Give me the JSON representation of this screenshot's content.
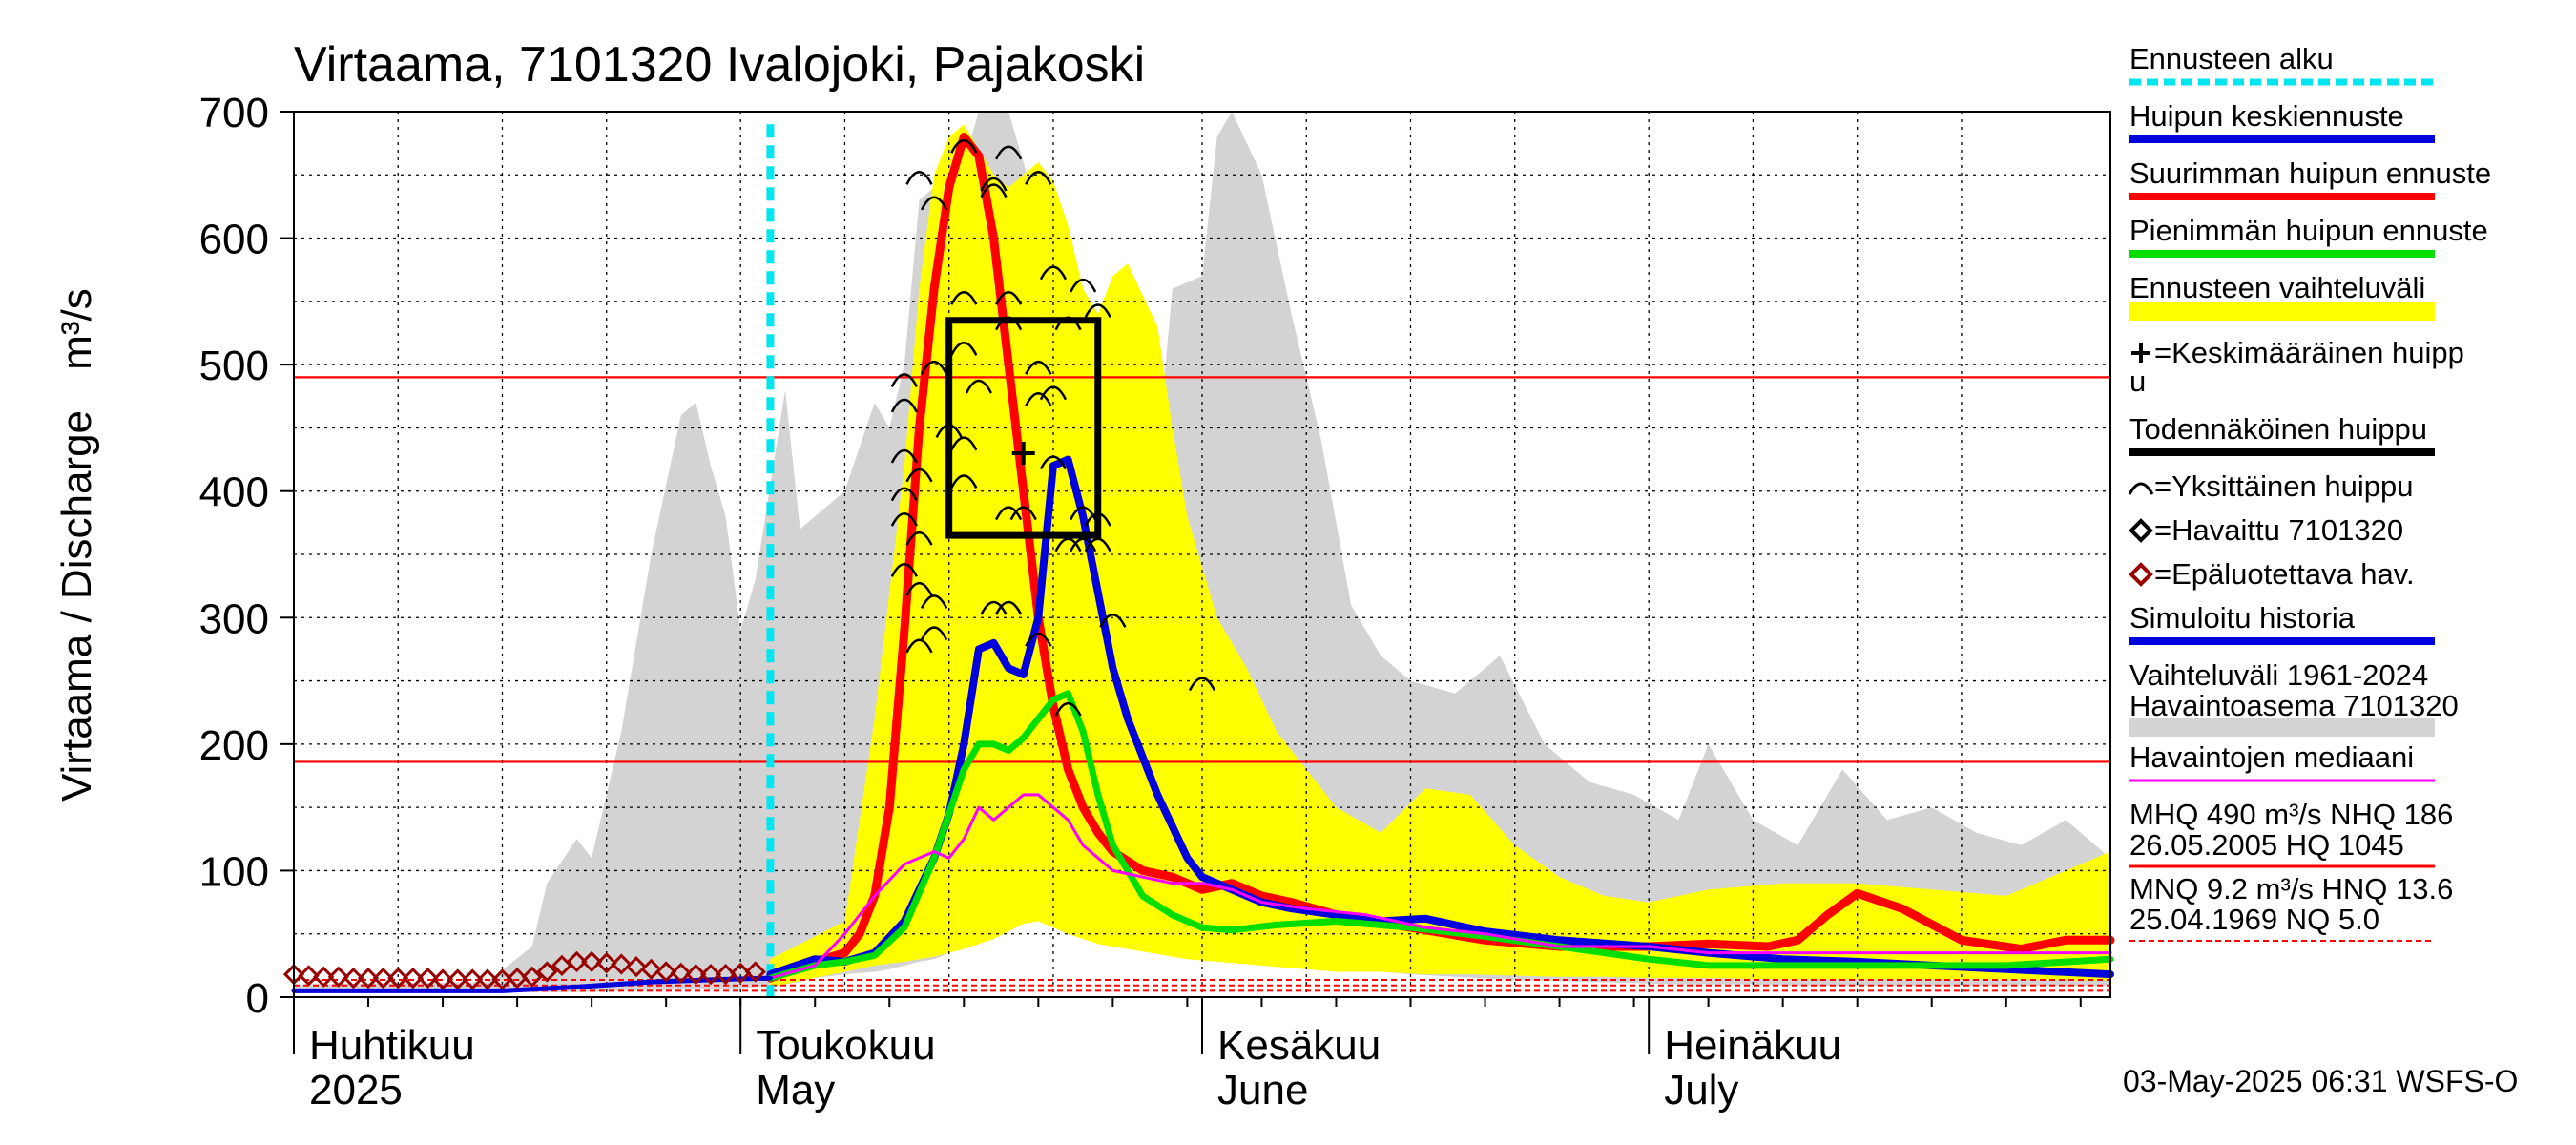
{
  "chart_data": {
    "type": "line",
    "title": "Virtaama, 7101320 Ivalojoki, Pajakoski",
    "ylabel": "Virtaama / Discharge",
    "yunit": "m³/s",
    "ylim": [
      0,
      700
    ],
    "xlim": [
      "2025-04-01",
      "2025-08-01"
    ],
    "yticks": [
      0,
      100,
      200,
      300,
      400,
      500,
      600,
      700
    ],
    "months": [
      {
        "fi": "Huhtikuu",
        "en": "2025",
        "date": "2025-04-01"
      },
      {
        "fi": "Toukokuu",
        "en": "May",
        "date": "2025-05-01"
      },
      {
        "fi": "Kesäkuu",
        "en": "June",
        "date": "2025-06-01"
      },
      {
        "fi": "Heinäkuu",
        "en": "July",
        "date": "2025-07-01"
      }
    ],
    "grid": true,
    "legend_position": "right",
    "colors": {
      "forecast_start": "#00e5ee",
      "mean_forecast": "#0000dd",
      "max_forecast": "#ff0000",
      "min_forecast": "#00dd00",
      "forecast_range": "#ffff00",
      "historical_range": "#d3d3d3",
      "median": "#ff00ff",
      "observed": "#000000",
      "unreliable": "#990000",
      "reference_line": "#ff0000"
    },
    "forecast_start": "2025-05-03",
    "reference_lines": [
      {
        "name": "MHQ",
        "value": 490
      },
      {
        "name": "NHQ",
        "value": 186
      },
      {
        "name": "MNQ",
        "value": 9.2
      },
      {
        "name": "HNQ",
        "value": 13.6
      },
      {
        "name": "NQ",
        "value": 5.0
      }
    ],
    "probable_peak_box": {
      "x0": "2025-05-15",
      "x1": "2025-05-25",
      "y0": 365,
      "y1": 535
    },
    "mean_peak": {
      "x": "2025-05-20",
      "y": 430
    },
    "historical_range": {
      "x": [
        "2025-04-01",
        "2025-04-14",
        "2025-04-17",
        "2025-04-18",
        "2025-04-20",
        "2025-04-21",
        "2025-04-23",
        "2025-04-25",
        "2025-04-27",
        "2025-04-28",
        "2025-04-29",
        "2025-04-30",
        "2025-05-01",
        "2025-05-02",
        "2025-05-04",
        "2025-05-05",
        "2025-05-06",
        "2025-05-08",
        "2025-05-10",
        "2025-05-11",
        "2025-05-12",
        "2025-05-13",
        "2025-05-14",
        "2025-05-15",
        "2025-05-16",
        "2025-05-17",
        "2025-05-18",
        "2025-05-19",
        "2025-05-20",
        "2025-05-21",
        "2025-05-22",
        "2025-05-23",
        "2025-05-25",
        "2025-05-26",
        "2025-05-28",
        "2025-05-29",
        "2025-05-30",
        "2025-06-01",
        "2025-06-02",
        "2025-06-03",
        "2025-06-05",
        "2025-06-07",
        "2025-06-09",
        "2025-06-11",
        "2025-06-13",
        "2025-06-15",
        "2025-06-18",
        "2025-06-21",
        "2025-06-24",
        "2025-06-27",
        "2025-06-30",
        "2025-07-03",
        "2025-07-05",
        "2025-07-08",
        "2025-07-11",
        "2025-07-14",
        "2025-07-17",
        "2025-07-20",
        "2025-07-23",
        "2025-07-26",
        "2025-07-29",
        "2025-08-01"
      ],
      "upper": [
        10,
        12,
        40,
        90,
        125,
        110,
        210,
        350,
        460,
        470,
        420,
        380,
        290,
        330,
        480,
        370,
        380,
        400,
        470,
        450,
        500,
        630,
        640,
        600,
        660,
        700,
        700,
        700,
        660,
        620,
        590,
        560,
        540,
        510,
        470,
        430,
        560,
        570,
        680,
        700,
        650,
        540,
        440,
        310,
        270,
        250,
        240,
        270,
        200,
        170,
        160,
        140,
        200,
        140,
        120,
        180,
        140,
        150,
        130,
        120,
        140,
        110
      ],
      "lower": [
        4,
        4,
        4,
        4,
        4,
        4,
        5,
        5,
        6,
        6,
        6,
        6,
        7,
        8,
        10,
        12,
        15,
        18,
        20,
        22,
        25,
        28,
        30,
        35,
        40,
        45,
        50,
        60,
        80,
        110,
        130,
        120,
        90,
        70,
        60,
        50,
        40,
        35,
        30,
        28,
        26,
        25,
        24,
        22,
        20,
        18,
        16,
        14,
        13,
        12,
        11,
        10,
        10,
        10,
        9,
        9,
        9,
        9,
        9,
        9,
        9,
        9
      ]
    },
    "forecast_range": {
      "x": [
        "2025-05-03",
        "2025-05-08",
        "2025-05-10",
        "2025-05-12",
        "2025-05-13",
        "2025-05-14",
        "2025-05-15",
        "2025-05-16",
        "2025-05-17",
        "2025-05-18",
        "2025-05-19",
        "2025-05-20",
        "2025-05-21",
        "2025-05-22",
        "2025-05-23",
        "2025-05-24",
        "2025-05-25",
        "2025-05-26",
        "2025-05-27",
        "2025-05-28",
        "2025-05-29",
        "2025-05-30",
        "2025-05-31",
        "2025-06-02",
        "2025-06-04",
        "2025-06-06",
        "2025-06-08",
        "2025-06-10",
        "2025-06-13",
        "2025-06-16",
        "2025-06-19",
        "2025-06-22",
        "2025-06-25",
        "2025-06-28",
        "2025-07-01",
        "2025-07-05",
        "2025-07-10",
        "2025-07-15",
        "2025-07-20",
        "2025-07-25",
        "2025-07-31",
        "2025-08-01"
      ],
      "upper": [
        30,
        60,
        220,
        420,
        560,
        650,
        680,
        690,
        670,
        650,
        640,
        650,
        660,
        645,
        610,
        560,
        540,
        570,
        580,
        555,
        530,
        450,
        380,
        300,
        260,
        210,
        180,
        150,
        130,
        165,
        160,
        120,
        95,
        80,
        75,
        85,
        90,
        90,
        85,
        80,
        110,
        115
      ],
      "lower": [
        8,
        20,
        25,
        28,
        30,
        32,
        35,
        38,
        42,
        46,
        52,
        58,
        60,
        55,
        50,
        46,
        42,
        40,
        38,
        36,
        34,
        32,
        30,
        28,
        26,
        24,
        22,
        20,
        20,
        18,
        18,
        17,
        16,
        16,
        15,
        15,
        14,
        14,
        14,
        14,
        13,
        13
      ]
    },
    "series": [
      {
        "key": "max_forecast",
        "x": [
          "2025-05-03",
          "2025-05-06",
          "2025-05-08",
          "2025-05-09",
          "2025-05-10",
          "2025-05-11",
          "2025-05-12",
          "2025-05-13",
          "2025-05-14",
          "2025-05-15",
          "2025-05-16",
          "2025-05-17",
          "2025-05-18",
          "2025-05-19",
          "2025-05-20",
          "2025-05-21",
          "2025-05-22",
          "2025-05-23",
          "2025-05-24",
          "2025-05-25",
          "2025-05-26",
          "2025-05-28",
          "2025-05-30",
          "2025-06-01",
          "2025-06-03",
          "2025-06-05",
          "2025-06-07",
          "2025-06-10",
          "2025-06-15",
          "2025-06-20",
          "2025-06-25",
          "2025-07-01",
          "2025-07-05",
          "2025-07-09",
          "2025-07-11",
          "2025-07-13",
          "2025-07-15",
          "2025-07-18",
          "2025-07-22",
          "2025-07-26",
          "2025-07-29",
          "2025-08-01"
        ],
        "y": [
          15,
          28,
          35,
          50,
          80,
          150,
          290,
          450,
          560,
          640,
          680,
          665,
          600,
          500,
          400,
          300,
          230,
          180,
          150,
          130,
          115,
          100,
          95,
          85,
          90,
          80,
          75,
          65,
          55,
          45,
          40,
          40,
          42,
          40,
          45,
          65,
          82,
          70,
          45,
          38,
          45,
          45
        ]
      },
      {
        "key": "mean_forecast",
        "x": [
          "2025-05-03",
          "2025-05-06",
          "2025-05-08",
          "2025-05-10",
          "2025-05-12",
          "2025-05-14",
          "2025-05-15",
          "2025-05-16",
          "2025-05-17",
          "2025-05-18",
          "2025-05-19",
          "2025-05-20",
          "2025-05-21",
          "2025-05-22",
          "2025-05-23",
          "2025-05-24",
          "2025-05-25",
          "2025-05-26",
          "2025-05-27",
          "2025-05-28",
          "2025-05-29",
          "2025-05-30",
          "2025-05-31",
          "2025-06-01",
          "2025-06-03",
          "2025-06-05",
          "2025-06-07",
          "2025-06-10",
          "2025-06-13",
          "2025-06-16",
          "2025-06-20",
          "2025-06-25",
          "2025-07-01",
          "2025-07-05",
          "2025-07-10",
          "2025-07-15",
          "2025-07-20",
          "2025-07-25",
          "2025-08-01"
        ],
        "y": [
          18,
          30,
          28,
          35,
          60,
          110,
          145,
          200,
          275,
          280,
          260,
          255,
          300,
          420,
          425,
          380,
          320,
          260,
          220,
          190,
          160,
          135,
          110,
          95,
          85,
          75,
          70,
          65,
          60,
          62,
          52,
          45,
          40,
          35,
          30,
          28,
          25,
          22,
          18
        ]
      },
      {
        "key": "min_forecast",
        "x": [
          "2025-05-03",
          "2025-05-06",
          "2025-05-08",
          "2025-05-10",
          "2025-05-12",
          "2025-05-14",
          "2025-05-15",
          "2025-05-16",
          "2025-05-17",
          "2025-05-18",
          "2025-05-19",
          "2025-05-20",
          "2025-05-21",
          "2025-05-22",
          "2025-05-23",
          "2025-05-24",
          "2025-05-25",
          "2025-05-26",
          "2025-05-28",
          "2025-05-30",
          "2025-06-01",
          "2025-06-03",
          "2025-06-06",
          "2025-06-10",
          "2025-06-15",
          "2025-06-20",
          "2025-06-25",
          "2025-07-01",
          "2025-07-05",
          "2025-07-10",
          "2025-07-15",
          "2025-07-20",
          "2025-07-25",
          "2025-08-01"
        ],
        "y": [
          15,
          25,
          28,
          33,
          55,
          110,
          145,
          180,
          200,
          200,
          195,
          205,
          220,
          235,
          240,
          210,
          160,
          120,
          80,
          65,
          55,
          53,
          57,
          60,
          55,
          48,
          40,
          30,
          25,
          25,
          25,
          25,
          25,
          30
        ]
      },
      {
        "key": "median",
        "x": [
          "2025-05-03",
          "2025-05-06",
          "2025-05-08",
          "2025-05-10",
          "2025-05-12",
          "2025-05-14",
          "2025-05-15",
          "2025-05-16",
          "2025-05-17",
          "2025-05-18",
          "2025-05-19",
          "2025-05-20",
          "2025-05-21",
          "2025-05-22",
          "2025-05-23",
          "2025-05-24",
          "2025-05-25",
          "2025-05-26",
          "2025-05-28",
          "2025-05-30",
          "2025-06-01",
          "2025-06-03",
          "2025-06-05",
          "2025-06-08",
          "2025-06-12",
          "2025-06-16",
          "2025-06-20",
          "2025-06-25",
          "2025-07-01",
          "2025-07-05",
          "2025-07-10",
          "2025-07-15",
          "2025-07-20",
          "2025-07-25",
          "2025-08-01"
        ],
        "y": [
          15,
          25,
          50,
          80,
          105,
          115,
          110,
          125,
          150,
          140,
          150,
          160,
          160,
          150,
          140,
          120,
          110,
          100,
          95,
          90,
          90,
          85,
          75,
          70,
          65,
          55,
          50,
          40,
          40,
          35,
          35,
          35,
          35,
          35,
          35
        ]
      },
      {
        "key": "simulated_history",
        "x": [
          "2025-04-01",
          "2025-04-15",
          "2025-04-20",
          "2025-04-25",
          "2025-04-30",
          "2025-05-03"
        ],
        "y": [
          5,
          5,
          8,
          12,
          14,
          15
        ]
      }
    ],
    "observed_unreliable": {
      "x": [
        "2025-04-01",
        "2025-04-02",
        "2025-04-03",
        "2025-04-04",
        "2025-04-05",
        "2025-04-06",
        "2025-04-07",
        "2025-04-08",
        "2025-04-09",
        "2025-04-10",
        "2025-04-11",
        "2025-04-12",
        "2025-04-13",
        "2025-04-14",
        "2025-04-15",
        "2025-04-16",
        "2025-04-17",
        "2025-04-18",
        "2025-04-19",
        "2025-04-20",
        "2025-04-21",
        "2025-04-22",
        "2025-04-23",
        "2025-04-24",
        "2025-04-25",
        "2025-04-26",
        "2025-04-27",
        "2025-04-28",
        "2025-04-29",
        "2025-04-30",
        "2025-05-01",
        "2025-05-02"
      ],
      "y": [
        18,
        17,
        16,
        16,
        15,
        15,
        15,
        15,
        15,
        15,
        14,
        14,
        14,
        14,
        14,
        15,
        16,
        20,
        25,
        28,
        28,
        27,
        26,
        24,
        22,
        20,
        19,
        18,
        18,
        18,
        19,
        20
      ]
    },
    "individual_peaks": [
      {
        "x": "2025-05-13",
        "y": 650
      },
      {
        "x": "2025-05-14",
        "y": 630
      },
      {
        "x": "2025-05-16",
        "y": 675
      },
      {
        "x": "2025-05-18",
        "y": 645
      },
      {
        "x": "2025-05-18",
        "y": 640
      },
      {
        "x": "2025-05-19",
        "y": 670
      },
      {
        "x": "2025-05-21",
        "y": 650
      },
      {
        "x": "2025-05-22",
        "y": 575
      },
      {
        "x": "2025-05-24",
        "y": 565
      },
      {
        "x": "2025-05-25",
        "y": 545
      },
      {
        "x": "2025-05-23",
        "y": 535
      },
      {
        "x": "2025-05-19",
        "y": 555
      },
      {
        "x": "2025-05-19",
        "y": 535
      },
      {
        "x": "2025-05-16",
        "y": 555
      },
      {
        "x": "2025-05-16",
        "y": 515
      },
      {
        "x": "2025-05-12",
        "y": 490
      },
      {
        "x": "2025-05-12",
        "y": 470
      },
      {
        "x": "2025-05-12",
        "y": 430
      },
      {
        "x": "2025-05-14",
        "y": 500
      },
      {
        "x": "2025-05-17",
        "y": 485
      },
      {
        "x": "2025-05-21",
        "y": 500
      },
      {
        "x": "2025-05-21",
        "y": 475
      },
      {
        "x": "2025-05-22",
        "y": 480
      },
      {
        "x": "2025-05-15",
        "y": 450
      },
      {
        "x": "2025-05-16",
        "y": 440
      },
      {
        "x": "2025-05-12",
        "y": 400
      },
      {
        "x": "2025-05-13",
        "y": 415
      },
      {
        "x": "2025-05-16",
        "y": 410
      },
      {
        "x": "2025-05-19",
        "y": 385
      },
      {
        "x": "2025-05-20",
        "y": 385
      },
      {
        "x": "2025-05-24",
        "y": 385
      },
      {
        "x": "2025-05-25",
        "y": 380
      },
      {
        "x": "2025-05-22",
        "y": 425
      },
      {
        "x": "2025-05-12",
        "y": 380
      },
      {
        "x": "2025-05-13",
        "y": 365
      },
      {
        "x": "2025-05-12",
        "y": 340
      },
      {
        "x": "2025-05-13",
        "y": 325
      },
      {
        "x": "2025-05-14",
        "y": 315
      },
      {
        "x": "2025-05-18",
        "y": 310
      },
      {
        "x": "2025-05-19",
        "y": 310
      },
      {
        "x": "2025-05-23",
        "y": 360
      },
      {
        "x": "2025-05-24",
        "y": 360
      },
      {
        "x": "2025-05-25",
        "y": 360
      },
      {
        "x": "2025-05-26",
        "y": 300
      },
      {
        "x": "2025-05-21",
        "y": 285
      },
      {
        "x": "2025-05-14",
        "y": 290
      },
      {
        "x": "2025-05-13",
        "y": 280
      },
      {
        "x": "2025-05-23",
        "y": 230
      },
      {
        "x": "2025-06-01",
        "y": 250
      }
    ]
  },
  "legend": [
    {
      "key": "forecast_start",
      "label": "Ennusteen alku",
      "swatch": "dash"
    },
    {
      "key": "mean_forecast",
      "label": "Huipun keskiennuste",
      "swatch": "bar"
    },
    {
      "key": "max_forecast",
      "label": "Suurimman huipun ennuste",
      "swatch": "bar"
    },
    {
      "key": "min_forecast",
      "label": "Pienimmän huipun ennuste",
      "swatch": "bar"
    },
    {
      "key": "forecast_range",
      "label": "Ennusteen vaihteluväli",
      "swatch": "wide"
    },
    {
      "key": "observed",
      "label": "=Keskimääräinen huipp",
      "label2": "u",
      "swatch": "plus"
    },
    {
      "key": "observed",
      "label": "Todennäköinen huippu",
      "swatch": "bar"
    },
    {
      "key": "observed",
      "label": "=Yksittäinen huippu",
      "swatch": "arc"
    },
    {
      "key": "observed",
      "label": "=Havaittu 7101320",
      "swatch": "diamond"
    },
    {
      "key": "unreliable",
      "label": "=Epäluotettava hav.",
      "swatch": "diamond"
    },
    {
      "key": "mean_forecast",
      "label": "Simuloitu historia",
      "swatch": "bar"
    },
    {
      "key": "historical_range",
      "label": "Vaihteluväli 1961-2024",
      "label2": " Havaintoasema 7101320",
      "swatch": "wide"
    },
    {
      "key": "median",
      "label": "Havaintojen mediaani",
      "swatch": "thin"
    },
    {
      "key": "reference_line",
      "label": "MHQ  490 m³/s NHQ  186",
      "label2": "26.05.2005 HQ 1045",
      "swatch": "thin"
    },
    {
      "key": "reference_line",
      "label": "MNQ  9.2 m³/s HNQ 13.6",
      "label2": "25.04.1969 NQ  5.0",
      "swatch": "dashthin"
    }
  ],
  "footer": "03-May-2025 06:31 WSFS-O"
}
